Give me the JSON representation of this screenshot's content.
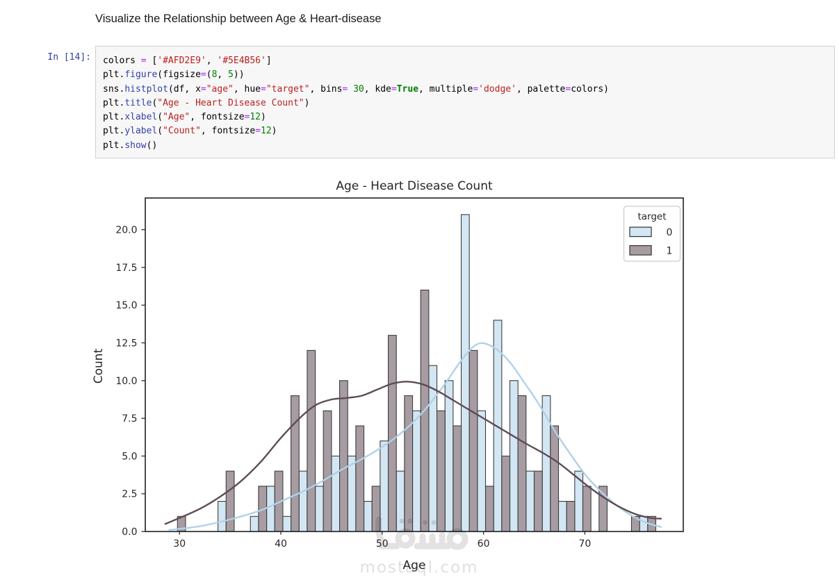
{
  "page": {
    "heading": "Visualize the Relationship between Age & Heart-disease"
  },
  "cell": {
    "prompt": "In [14]:",
    "code_lines": [
      [
        [
          "colors ",
          "d"
        ],
        [
          "=",
          "op"
        ],
        [
          " [",
          "d"
        ],
        [
          "'#AFD2E9'",
          "str"
        ],
        [
          ", ",
          "d"
        ],
        [
          "'#5E4B56'",
          "str"
        ],
        [
          "]",
          "d"
        ]
      ],
      [
        [
          "plt.",
          "d"
        ],
        [
          "figure",
          "prop"
        ],
        [
          "(figsize",
          "d"
        ],
        [
          "=",
          "op"
        ],
        [
          "(",
          "d"
        ],
        [
          "8",
          "num"
        ],
        [
          ", ",
          "d"
        ],
        [
          "5",
          "num"
        ],
        [
          "))",
          "d"
        ]
      ],
      [
        [
          "sns.",
          "d"
        ],
        [
          "histplot",
          "prop"
        ],
        [
          "(df, x",
          "d"
        ],
        [
          "=",
          "op"
        ],
        [
          "\"age\"",
          "str"
        ],
        [
          ", hue",
          "d"
        ],
        [
          "=",
          "op"
        ],
        [
          "\"target\"",
          "str"
        ],
        [
          ", bins",
          "d"
        ],
        [
          "=",
          "op"
        ],
        [
          " ",
          "d"
        ],
        [
          "30",
          "num"
        ],
        [
          ", kde",
          "d"
        ],
        [
          "=",
          "op"
        ],
        [
          "True",
          "kw"
        ],
        [
          ", multiple",
          "d"
        ],
        [
          "=",
          "op"
        ],
        [
          "'dodge'",
          "str"
        ],
        [
          ", palette",
          "d"
        ],
        [
          "=",
          "op"
        ],
        [
          "colors)",
          "d"
        ]
      ],
      [
        [
          "plt.",
          "d"
        ],
        [
          "title",
          "prop"
        ],
        [
          "(",
          "d"
        ],
        [
          "\"Age - Heart Disease Count\"",
          "str"
        ],
        [
          ")",
          "d"
        ]
      ],
      [
        [
          "plt.",
          "d"
        ],
        [
          "xlabel",
          "prop"
        ],
        [
          "(",
          "d"
        ],
        [
          "\"Age\"",
          "str"
        ],
        [
          ", fontsize",
          "d"
        ],
        [
          "=",
          "op"
        ],
        [
          "12",
          "num"
        ],
        [
          ")",
          "d"
        ]
      ],
      [
        [
          "plt.",
          "d"
        ],
        [
          "ylabel",
          "prop"
        ],
        [
          "(",
          "d"
        ],
        [
          "\"Count\"",
          "str"
        ],
        [
          ", fontsize",
          "d"
        ],
        [
          "=",
          "op"
        ],
        [
          "12",
          "num"
        ],
        [
          ")",
          "d"
        ]
      ],
      [
        [
          "plt.",
          "d"
        ],
        [
          "show",
          "prop"
        ],
        [
          "()",
          "d"
        ]
      ]
    ]
  },
  "chart_data": {
    "type": "bar",
    "subtype": "histogram-with-kde",
    "title": "Age - Heart Disease Count",
    "xlabel": "Age",
    "ylabel": "Count",
    "xlim": [
      26.6,
      79.4
    ],
    "ylim": [
      0,
      22.1
    ],
    "x_ticks": [
      30,
      40,
      50,
      60,
      70
    ],
    "y_ticks": [
      0.0,
      2.5,
      5.0,
      7.5,
      10.0,
      12.5,
      15.0,
      17.5,
      20.0
    ],
    "grid": false,
    "bar_edge": "#3d3d3d",
    "legend": {
      "title": "target",
      "position": "upper-right",
      "entries": [
        {
          "label": "0",
          "swatch": "#D3E6F3"
        },
        {
          "label": "1",
          "swatch": "#A69CA2"
        }
      ]
    },
    "palette": [
      "#AFD2E9",
      "#5E4B56"
    ],
    "bins": {
      "start": 29.0,
      "width": 1.6,
      "series": [
        {
          "name": "0",
          "fill": "#D3E6F3",
          "counts": [
            0,
            0,
            0,
            2,
            0,
            1,
            3,
            1,
            4,
            3,
            5,
            5,
            2,
            6,
            4,
            8,
            11,
            10,
            21,
            8,
            14,
            10,
            4,
            9,
            2,
            4,
            0,
            0,
            0,
            1
          ]
        },
        {
          "name": "1",
          "fill": "#A69CA2",
          "counts": [
            1,
            0,
            0,
            4,
            0,
            3,
            4,
            9,
            12,
            8,
            10,
            7,
            3,
            13,
            9,
            16,
            8,
            7,
            12,
            3,
            5,
            9,
            4,
            7,
            2,
            3,
            3,
            0,
            1,
            1
          ]
        }
      ]
    },
    "kde": [
      {
        "name": "0",
        "color": "#AFD2E9",
        "points": [
          [
            29,
            0.1
          ],
          [
            32,
            0.35
          ],
          [
            35,
            0.8
          ],
          [
            38,
            1.4
          ],
          [
            40,
            2.0
          ],
          [
            42,
            2.6
          ],
          [
            44,
            3.3
          ],
          [
            46,
            4.1
          ],
          [
            48,
            4.8
          ],
          [
            50,
            5.6
          ],
          [
            52,
            6.6
          ],
          [
            54,
            7.9
          ],
          [
            56,
            9.6
          ],
          [
            58,
            11.5
          ],
          [
            59.5,
            12.45
          ],
          [
            61,
            12.2
          ],
          [
            62.5,
            11.3
          ],
          [
            64,
            9.9
          ],
          [
            65.5,
            8.4
          ],
          [
            67,
            6.7
          ],
          [
            68.5,
            5.2
          ],
          [
            70,
            3.8
          ],
          [
            71.5,
            2.7
          ],
          [
            73,
            1.8
          ],
          [
            74.5,
            1.1
          ],
          [
            76,
            0.6
          ],
          [
            77.5,
            0.3
          ]
        ]
      },
      {
        "name": "1",
        "color": "#5E4B56",
        "points": [
          [
            28.6,
            0.5
          ],
          [
            30,
            0.9
          ],
          [
            32,
            1.5
          ],
          [
            34,
            2.3
          ],
          [
            36,
            3.3
          ],
          [
            38,
            4.6
          ],
          [
            40,
            6.2
          ],
          [
            42,
            7.6
          ],
          [
            43.5,
            8.4
          ],
          [
            45,
            8.75
          ],
          [
            46.5,
            8.85
          ],
          [
            48,
            9.0
          ],
          [
            49.5,
            9.4
          ],
          [
            51,
            9.8
          ],
          [
            52.5,
            9.93
          ],
          [
            54,
            9.75
          ],
          [
            55.5,
            9.3
          ],
          [
            57,
            8.7
          ],
          [
            58.5,
            8.1
          ],
          [
            60,
            7.5
          ],
          [
            62,
            6.7
          ],
          [
            64,
            5.9
          ],
          [
            66,
            5.15
          ],
          [
            67.5,
            4.5
          ],
          [
            69,
            3.7
          ],
          [
            70.5,
            2.9
          ],
          [
            72,
            2.2
          ],
          [
            73.5,
            1.6
          ],
          [
            75,
            1.15
          ],
          [
            76.5,
            0.9
          ],
          [
            77.5,
            0.85
          ]
        ]
      }
    ]
  },
  "watermark": {
    "arabic": "مستقل",
    "domain": "mostaql.com"
  }
}
